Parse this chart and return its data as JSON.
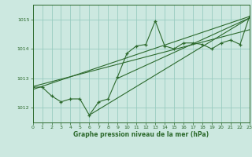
{
  "title": "Graphe pression niveau de la mer (hPa)",
  "bg_color": "#cce8e0",
  "grid_color": "#99ccc0",
  "line_color": "#2d6a2d",
  "x_min": 0,
  "x_max": 23,
  "y_min": 1011.5,
  "y_max": 1015.5,
  "yticks": [
    1012,
    1013,
    1014,
    1015
  ],
  "xticks": [
    0,
    1,
    2,
    3,
    4,
    5,
    6,
    7,
    8,
    9,
    10,
    11,
    12,
    13,
    14,
    15,
    16,
    17,
    18,
    19,
    20,
    21,
    22,
    23
  ],
  "main_line": [
    [
      0,
      1012.7
    ],
    [
      1,
      1012.7
    ],
    [
      2,
      1012.4
    ],
    [
      3,
      1012.2
    ],
    [
      4,
      1012.3
    ],
    [
      5,
      1012.3
    ],
    [
      6,
      1011.75
    ],
    [
      7,
      1012.2
    ],
    [
      8,
      1012.3
    ],
    [
      9,
      1013.05
    ],
    [
      10,
      1013.85
    ],
    [
      11,
      1014.1
    ],
    [
      12,
      1014.15
    ],
    [
      13,
      1014.95
    ],
    [
      14,
      1014.1
    ],
    [
      15,
      1014.0
    ],
    [
      16,
      1014.2
    ],
    [
      17,
      1014.2
    ],
    [
      18,
      1014.15
    ],
    [
      19,
      1014.0
    ],
    [
      20,
      1014.2
    ],
    [
      21,
      1014.3
    ],
    [
      22,
      1014.15
    ],
    [
      23,
      1015.1
    ]
  ],
  "trend_line1": [
    [
      0,
      1012.62
    ],
    [
      23,
      1015.1
    ]
  ],
  "trend_line2": [
    [
      0,
      1012.72
    ],
    [
      23,
      1014.65
    ]
  ],
  "trend_line3": [
    [
      6,
      1011.75
    ],
    [
      23,
      1015.05
    ]
  ],
  "trend_line4": [
    [
      9,
      1013.0
    ],
    [
      23,
      1015.05
    ]
  ]
}
